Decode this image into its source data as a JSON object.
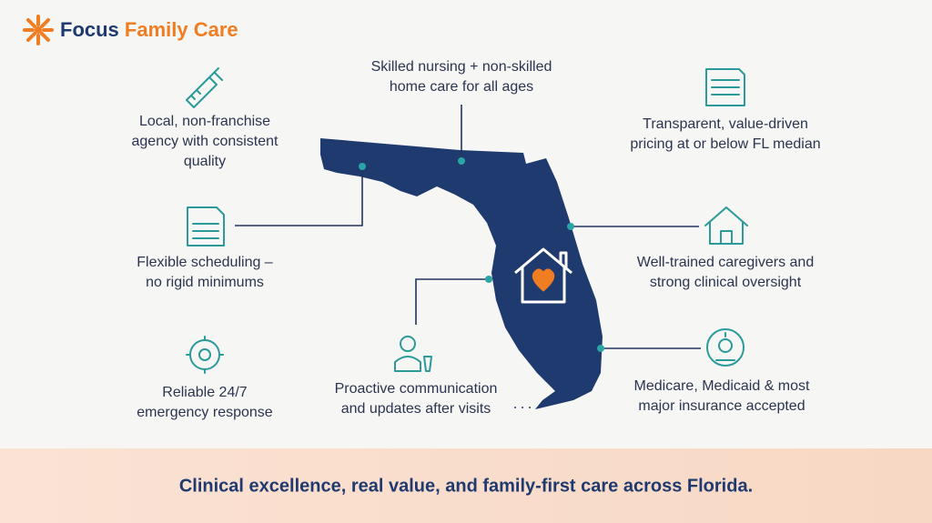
{
  "header": {
    "brand_first": "Focus",
    "brand_second": "Family Care"
  },
  "features": [
    {
      "lines": [
        "Skilled nursing + non-skilled",
        "home care for all ages"
      ]
    },
    {
      "lines": [
        "Local, non-franchise",
        "agency with consistent",
        "quality"
      ]
    },
    {
      "lines": [
        "Flexible scheduling –",
        "no rigid minimums"
      ]
    },
    {
      "lines": [
        "Reliable 24/7",
        "emergency response"
      ]
    },
    {
      "lines": [
        "Proactive communication",
        "and updates after visits"
      ]
    },
    {
      "lines": [
        "Transparent, value-driven",
        "pricing at or below FL median"
      ]
    },
    {
      "lines": [
        "Well-trained caregivers and",
        "strong clinical oversight"
      ]
    },
    {
      "lines": [
        "Medicare, Medicaid & most",
        "major insurance accepted"
      ]
    }
  ],
  "footer": {
    "tagline": "Clinical excellence, real value, and family-first care across Florida."
  }
}
